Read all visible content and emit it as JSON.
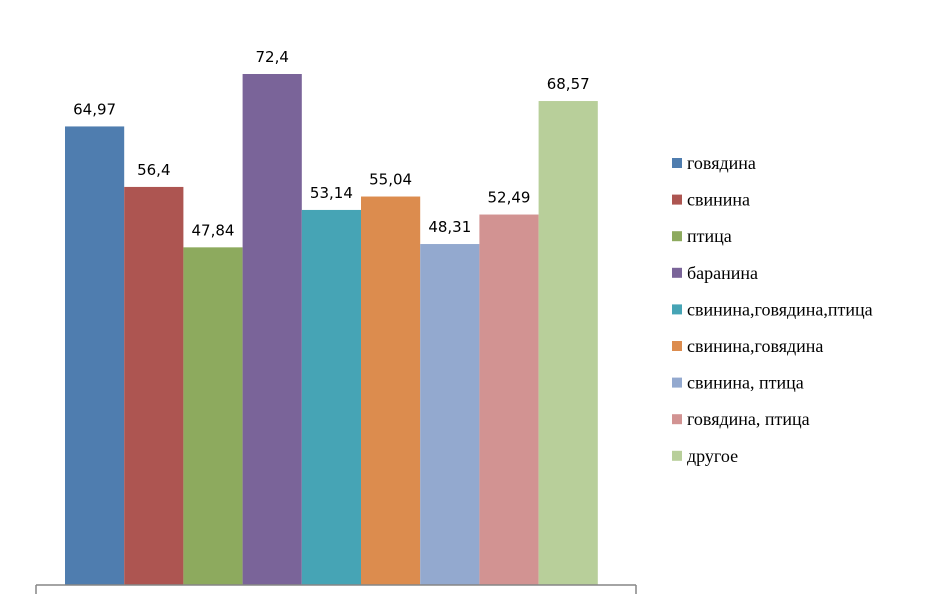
{
  "chart_data": {
    "type": "bar",
    "title": "",
    "xlabel": "",
    "ylabel": "",
    "ylim": [
      0,
      80
    ],
    "grid": false,
    "legend_position": "right",
    "categories": [
      "говядина",
      "свинина",
      "птица",
      "баранина",
      "свинина,говядина,птица",
      "свинина,говядина",
      "свинина, птица",
      "говядина, птица",
      "другое"
    ],
    "values": [
      64.97,
      56.4,
      47.84,
      72.4,
      53.14,
      55.04,
      48.31,
      52.49,
      68.57
    ],
    "value_labels": [
      "64,97",
      "56,4",
      "47,84",
      "72,4",
      "53,14",
      "55,04",
      "48,31",
      "52,49",
      "68,57"
    ],
    "colors": [
      "#4F7DAF",
      "#AD5551",
      "#8DAA5E",
      "#7A6499",
      "#46A4B5",
      "#DC8C4E",
      "#93A9CF",
      "#D29392",
      "#B8CF9A"
    ]
  }
}
